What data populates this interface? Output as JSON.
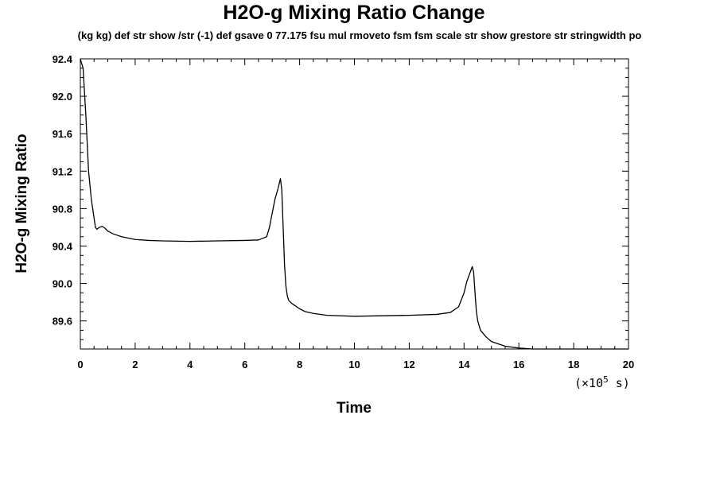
{
  "chart_data": {
    "type": "line",
    "title": "H2O-g Mixing Ratio Change",
    "subtitle": "(kg kg) def str show /str (-1) def gsave 0 77.175 fsu mul rmoveto fsm fsm scale str show grestore str stringwidth po",
    "xlabel": "Time",
    "ylabel": "H2O-g Mixing Ratio",
    "x_unit": {
      "prefix": "(×10",
      "exponent": "5",
      "suffix": " s)"
    },
    "xlim": [
      0,
      20
    ],
    "ylim": [
      89.3,
      92.4
    ],
    "x_ticks": [
      "0",
      "2",
      "4",
      "6",
      "8",
      "10",
      "12",
      "14",
      "16",
      "18",
      "20"
    ],
    "y_ticks": [
      "89.6",
      "90.0",
      "90.4",
      "90.8",
      "91.2",
      "91.6",
      "92.0",
      "92.4"
    ],
    "grid": false,
    "legend": "none",
    "line_color": "#000000",
    "series": [
      {
        "x": [
          0,
          0.1,
          0.2,
          0.3,
          0.35,
          0.4,
          0.45,
          0.5,
          0.55,
          0.6,
          0.65,
          0.7,
          0.8,
          0.9,
          1.0,
          1.2,
          1.5,
          2.0,
          2.5,
          3.0,
          4.0,
          5.0,
          6.0,
          6.5,
          6.8,
          6.9,
          7.0,
          7.1,
          7.2,
          7.3,
          7.35,
          7.4,
          7.45,
          7.5,
          7.55,
          7.6,
          7.7,
          7.8,
          8.0,
          8.2,
          8.5,
          9.0,
          10.0,
          11.0,
          12.0,
          13.0,
          13.5,
          13.8,
          14.0,
          14.1,
          14.2,
          14.3,
          14.35,
          14.4,
          14.45,
          14.5,
          14.6,
          14.8,
          15.0,
          15.5,
          16.0,
          16.5,
          17.0,
          18.0,
          19.0,
          20.0
        ],
        "y": [
          92.4,
          92.3,
          91.8,
          91.2,
          91.05,
          90.9,
          90.8,
          90.7,
          90.6,
          90.58,
          90.59,
          90.6,
          90.61,
          90.59,
          90.56,
          90.53,
          90.5,
          90.47,
          90.46,
          90.455,
          90.45,
          90.455,
          90.46,
          90.465,
          90.5,
          90.6,
          90.75,
          90.9,
          91.0,
          91.12,
          91.0,
          90.6,
          90.2,
          89.97,
          89.87,
          89.82,
          89.79,
          89.77,
          89.73,
          89.7,
          89.68,
          89.66,
          89.65,
          89.655,
          89.66,
          89.67,
          89.69,
          89.75,
          89.9,
          90.02,
          90.1,
          90.18,
          90.12,
          89.9,
          89.7,
          89.6,
          89.5,
          89.43,
          89.38,
          89.33,
          89.31,
          89.3,
          89.3,
          89.3,
          89.3,
          89.3
        ]
      }
    ]
  }
}
